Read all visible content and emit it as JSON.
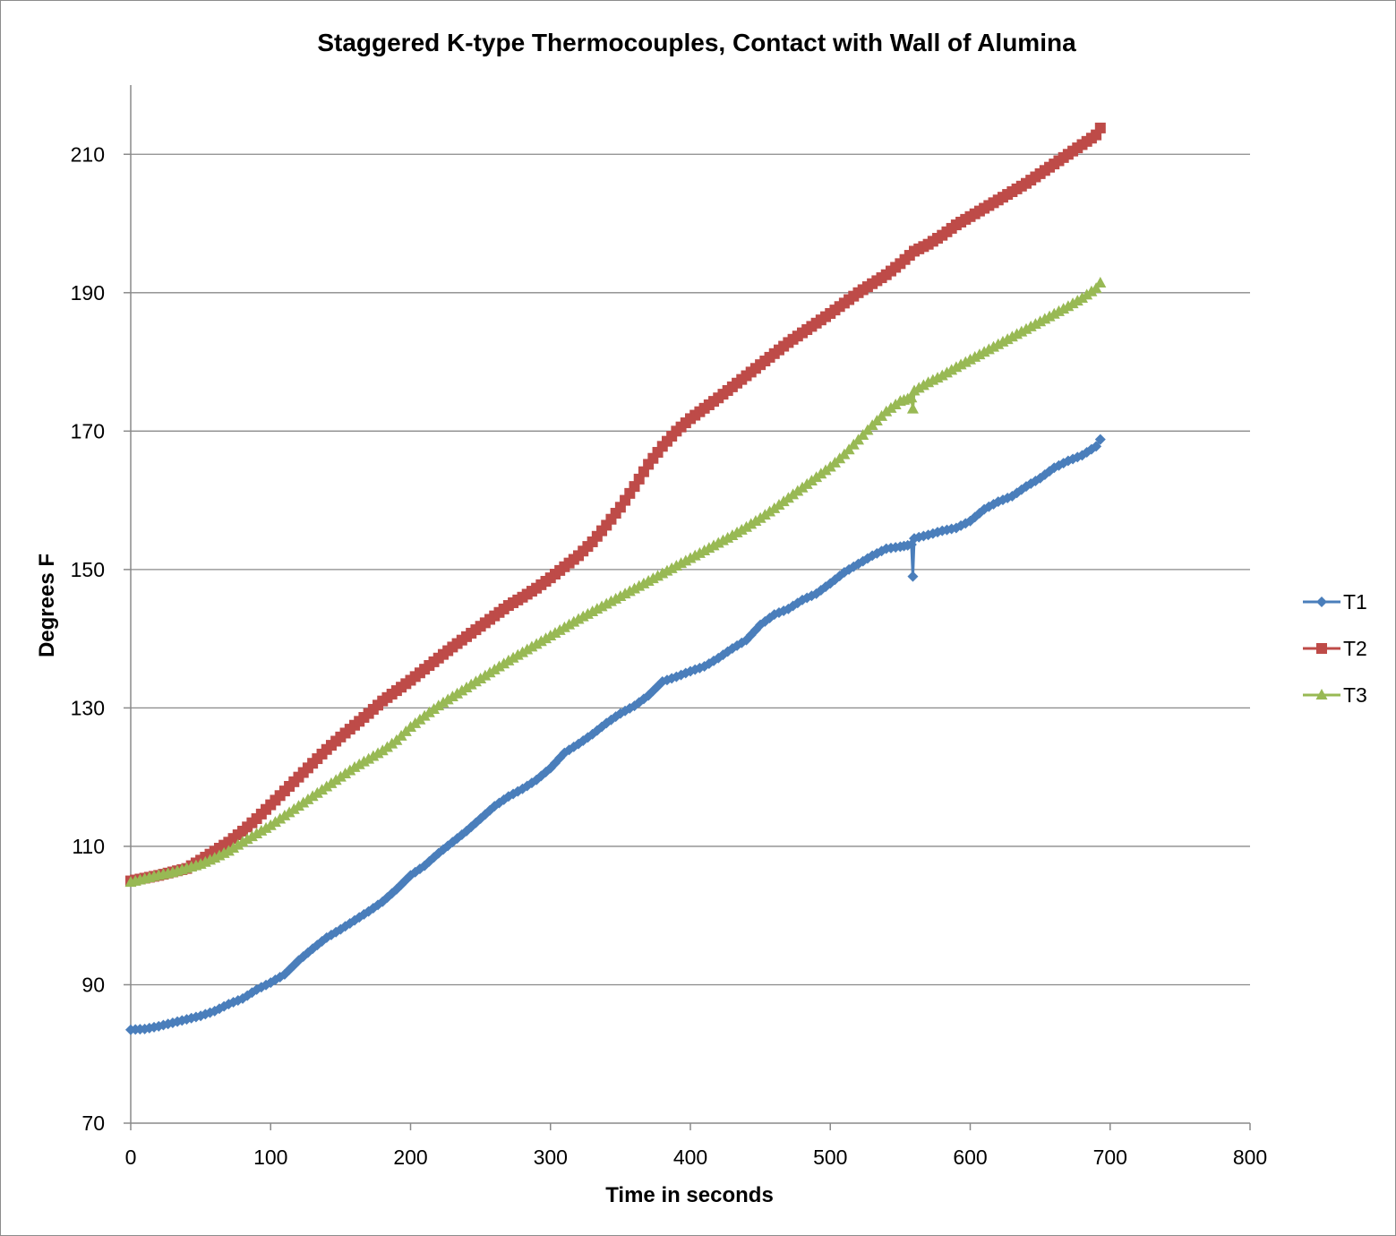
{
  "chart_data": {
    "type": "line",
    "title": "Staggered K-type Thermocouples, Contact with Wall of Alumina",
    "xlabel": "Time in seconds",
    "ylabel": "Degrees F",
    "xlim": [
      0,
      800
    ],
    "ylim": [
      70,
      220
    ],
    "x_ticks": [
      0,
      100,
      200,
      300,
      400,
      500,
      600,
      700,
      800
    ],
    "y_ticks": [
      70,
      90,
      110,
      130,
      150,
      170,
      190,
      210
    ],
    "grid": "horizontal major gridlines",
    "legend_position": "right",
    "series": [
      {
        "name": "T1",
        "color": "#4a7ebb",
        "marker": "diamond",
        "points": [
          [
            0,
            83.5
          ],
          [
            10,
            83.6
          ],
          [
            20,
            84.0
          ],
          [
            30,
            84.5
          ],
          [
            40,
            85.0
          ],
          [
            50,
            85.5
          ],
          [
            60,
            86.2
          ],
          [
            70,
            87.2
          ],
          [
            80,
            88.0
          ],
          [
            90,
            89.3
          ],
          [
            100,
            90.3
          ],
          [
            110,
            91.5
          ],
          [
            120,
            93.5
          ],
          [
            130,
            95.2
          ],
          [
            140,
            96.8
          ],
          [
            150,
            98.0
          ],
          [
            160,
            99.3
          ],
          [
            170,
            100.6
          ],
          [
            180,
            102.0
          ],
          [
            190,
            103.8
          ],
          [
            200,
            105.8
          ],
          [
            210,
            107.2
          ],
          [
            220,
            109.0
          ],
          [
            230,
            110.6
          ],
          [
            240,
            112.2
          ],
          [
            250,
            114.0
          ],
          [
            260,
            115.8
          ],
          [
            270,
            117.2
          ],
          [
            280,
            118.3
          ],
          [
            290,
            119.6
          ],
          [
            300,
            121.3
          ],
          [
            310,
            123.5
          ],
          [
            320,
            124.8
          ],
          [
            330,
            126.2
          ],
          [
            340,
            127.8
          ],
          [
            350,
            129.2
          ],
          [
            360,
            130.3
          ],
          [
            370,
            131.8
          ],
          [
            380,
            133.8
          ],
          [
            390,
            134.5
          ],
          [
            400,
            135.3
          ],
          [
            410,
            136.0
          ],
          [
            420,
            137.2
          ],
          [
            430,
            138.6
          ],
          [
            440,
            139.8
          ],
          [
            450,
            142.0
          ],
          [
            460,
            143.5
          ],
          [
            470,
            144.3
          ],
          [
            480,
            145.6
          ],
          [
            490,
            146.5
          ],
          [
            500,
            148.0
          ],
          [
            510,
            149.6
          ],
          [
            520,
            150.8
          ],
          [
            530,
            152.0
          ],
          [
            540,
            153.0
          ],
          [
            550,
            153.3
          ],
          [
            558,
            153.6
          ],
          [
            559,
            149.0
          ],
          [
            560,
            154.5
          ],
          [
            570,
            155.0
          ],
          [
            580,
            155.6
          ],
          [
            590,
            156.0
          ],
          [
            600,
            157.0
          ],
          [
            610,
            158.7
          ],
          [
            620,
            159.8
          ],
          [
            630,
            160.6
          ],
          [
            640,
            162.0
          ],
          [
            650,
            163.2
          ],
          [
            660,
            164.7
          ],
          [
            670,
            165.7
          ],
          [
            680,
            166.5
          ],
          [
            690,
            167.8
          ],
          [
            693,
            168.8
          ]
        ]
      },
      {
        "name": "T2",
        "color": "#be4b48",
        "marker": "square",
        "points": [
          [
            0,
            105.0
          ],
          [
            10,
            105.4
          ],
          [
            20,
            105.8
          ],
          [
            30,
            106.3
          ],
          [
            40,
            106.8
          ],
          [
            50,
            108.0
          ],
          [
            60,
            109.3
          ],
          [
            70,
            110.6
          ],
          [
            80,
            112.2
          ],
          [
            90,
            114.0
          ],
          [
            100,
            116.0
          ],
          [
            110,
            118.0
          ],
          [
            120,
            120.0
          ],
          [
            130,
            122.0
          ],
          [
            140,
            124.0
          ],
          [
            150,
            125.8
          ],
          [
            160,
            127.5
          ],
          [
            170,
            129.2
          ],
          [
            180,
            131.0
          ],
          [
            190,
            132.5
          ],
          [
            200,
            134.0
          ],
          [
            210,
            135.6
          ],
          [
            220,
            137.2
          ],
          [
            230,
            138.8
          ],
          [
            240,
            140.3
          ],
          [
            250,
            141.8
          ],
          [
            260,
            143.3
          ],
          [
            270,
            144.8
          ],
          [
            280,
            146.0
          ],
          [
            290,
            147.3
          ],
          [
            300,
            148.8
          ],
          [
            310,
            150.4
          ],
          [
            320,
            152.0
          ],
          [
            330,
            154.0
          ],
          [
            340,
            156.4
          ],
          [
            350,
            159.0
          ],
          [
            360,
            162.0
          ],
          [
            370,
            165.2
          ],
          [
            380,
            167.8
          ],
          [
            390,
            170.0
          ],
          [
            400,
            171.8
          ],
          [
            410,
            173.3
          ],
          [
            420,
            174.8
          ],
          [
            430,
            176.4
          ],
          [
            440,
            178.0
          ],
          [
            450,
            179.6
          ],
          [
            460,
            181.2
          ],
          [
            470,
            182.8
          ],
          [
            480,
            184.2
          ],
          [
            490,
            185.6
          ],
          [
            500,
            187.0
          ],
          [
            510,
            188.5
          ],
          [
            520,
            190.0
          ],
          [
            530,
            191.3
          ],
          [
            540,
            192.6
          ],
          [
            550,
            194.2
          ],
          [
            560,
            196.0
          ],
          [
            570,
            197.0
          ],
          [
            580,
            198.3
          ],
          [
            590,
            199.8
          ],
          [
            600,
            201.0
          ],
          [
            610,
            202.2
          ],
          [
            620,
            203.4
          ],
          [
            630,
            204.6
          ],
          [
            640,
            205.8
          ],
          [
            650,
            207.2
          ],
          [
            660,
            208.6
          ],
          [
            670,
            210.0
          ],
          [
            680,
            211.4
          ],
          [
            690,
            212.8
          ],
          [
            693,
            213.8
          ]
        ]
      },
      {
        "name": "T3",
        "color": "#98b954",
        "marker": "triangle",
        "points": [
          [
            0,
            104.8
          ],
          [
            10,
            105.3
          ],
          [
            20,
            105.8
          ],
          [
            30,
            106.2
          ],
          [
            40,
            106.8
          ],
          [
            50,
            107.4
          ],
          [
            60,
            108.3
          ],
          [
            70,
            109.3
          ],
          [
            80,
            110.6
          ],
          [
            90,
            111.8
          ],
          [
            100,
            113.0
          ],
          [
            110,
            114.4
          ],
          [
            120,
            115.8
          ],
          [
            130,
            117.2
          ],
          [
            140,
            118.6
          ],
          [
            150,
            120.0
          ],
          [
            160,
            121.4
          ],
          [
            170,
            122.6
          ],
          [
            180,
            123.8
          ],
          [
            190,
            125.3
          ],
          [
            200,
            127.2
          ],
          [
            210,
            128.8
          ],
          [
            220,
            130.3
          ],
          [
            230,
            131.6
          ],
          [
            240,
            132.9
          ],
          [
            250,
            134.2
          ],
          [
            260,
            135.5
          ],
          [
            270,
            136.8
          ],
          [
            280,
            138.0
          ],
          [
            290,
            139.2
          ],
          [
            300,
            140.4
          ],
          [
            310,
            141.6
          ],
          [
            320,
            142.8
          ],
          [
            330,
            143.9
          ],
          [
            340,
            145.0
          ],
          [
            350,
            146.1
          ],
          [
            360,
            147.2
          ],
          [
            370,
            148.3
          ],
          [
            380,
            149.4
          ],
          [
            390,
            150.5
          ],
          [
            400,
            151.6
          ],
          [
            410,
            152.7
          ],
          [
            420,
            153.8
          ],
          [
            430,
            154.9
          ],
          [
            440,
            156.1
          ],
          [
            450,
            157.4
          ],
          [
            460,
            158.8
          ],
          [
            470,
            160.3
          ],
          [
            480,
            161.8
          ],
          [
            490,
            163.3
          ],
          [
            500,
            164.8
          ],
          [
            510,
            166.6
          ],
          [
            520,
            168.7
          ],
          [
            530,
            170.8
          ],
          [
            540,
            172.8
          ],
          [
            550,
            174.3
          ],
          [
            558,
            174.8
          ],
          [
            559,
            173.2
          ],
          [
            560,
            175.8
          ],
          [
            570,
            177.0
          ],
          [
            580,
            178.0
          ],
          [
            590,
            179.2
          ],
          [
            600,
            180.3
          ],
          [
            610,
            181.4
          ],
          [
            620,
            182.5
          ],
          [
            630,
            183.6
          ],
          [
            640,
            184.7
          ],
          [
            650,
            185.8
          ],
          [
            660,
            186.9
          ],
          [
            670,
            188.0
          ],
          [
            680,
            189.2
          ],
          [
            690,
            190.6
          ],
          [
            693,
            191.4
          ]
        ]
      }
    ]
  }
}
